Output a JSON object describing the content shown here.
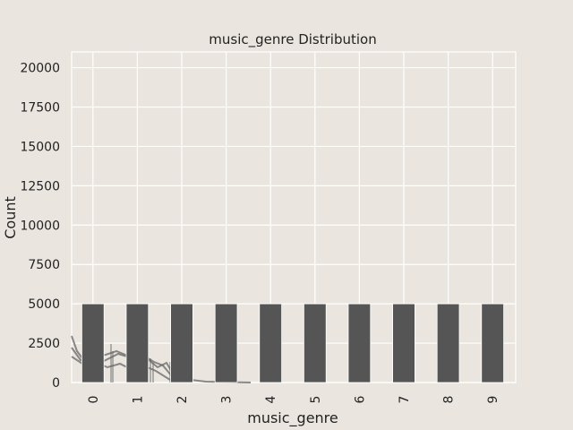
{
  "chart_data": {
    "type": "bar",
    "title": "music_genre Distribution",
    "xlabel": "music_genre",
    "ylabel": "Count",
    "categories": [
      "0",
      "1",
      "2",
      "3",
      "4",
      "5",
      "6",
      "7",
      "8",
      "9"
    ],
    "values": [
      5000,
      5000,
      5000,
      5000,
      5000,
      5000,
      5000,
      5000,
      5000,
      5000
    ],
    "ylim": [
      0,
      21000
    ],
    "yticks": [
      0,
      2500,
      5000,
      7500,
      10000,
      12500,
      15000,
      17500,
      20000
    ],
    "xtick_rotation": -90,
    "grid": true,
    "colors": {
      "background": "#eae6df",
      "grid": "#ffffff",
      "bar": "#555555",
      "overlay": "#666666"
    }
  }
}
